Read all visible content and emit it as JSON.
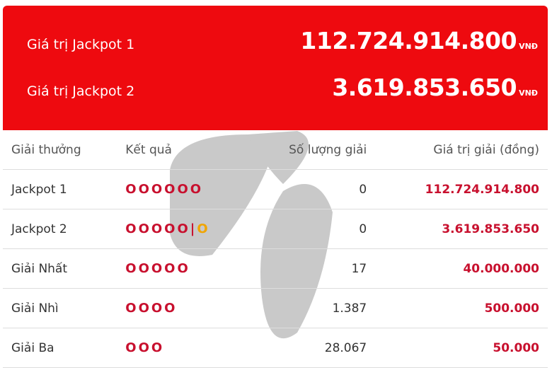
{
  "banner": {
    "jackpot1_label": "Giá trị Jackpot 1",
    "jackpot1_value": "112.724.914.800",
    "jackpot2_label": "Giá trị Jackpot 2",
    "jackpot2_value": "3.619.853.650",
    "currency": "VNĐ"
  },
  "table": {
    "headers": [
      "Giải thưởng",
      "Kết quả",
      "Số lượng giải",
      "Giá trị giải (đồng)"
    ],
    "rows": [
      {
        "name": "Jackpot 1",
        "result": "OOOOOO",
        "count": "0",
        "value": "112.724.914.800"
      },
      {
        "name": "Jackpot 2",
        "result": "OOOOO",
        "sep": "|",
        "extra": "O",
        "count": "0",
        "value": "3.619.853.650"
      },
      {
        "name": "Giải Nhất",
        "result": "OOOOO",
        "count": "17",
        "value": "40.000.000"
      },
      {
        "name": "Giải Nhì",
        "result": "OOOO",
        "count": "1.387",
        "value": "500.000"
      },
      {
        "name": "Giải Ba",
        "result": "OOO",
        "count": "28.067",
        "value": "50.000"
      }
    ]
  },
  "colors": {
    "banner": "#ee0a0f",
    "prize": "#c8102e",
    "bonus": "#f0a500"
  }
}
